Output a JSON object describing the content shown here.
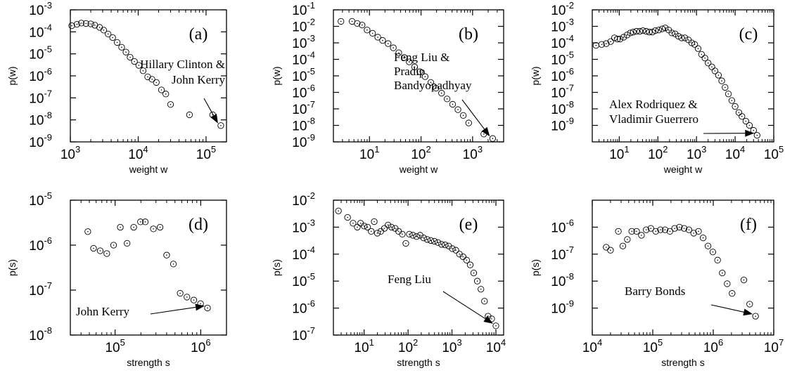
{
  "chart_data": [
    {
      "panel": "(a)",
      "type": "scatter",
      "log_x": true,
      "log_y": true,
      "xlabel": "weight w",
      "ylabel": "p(w)",
      "xlim": [
        1000,
        200000
      ],
      "ylim": [
        1e-09,
        0.001
      ],
      "x_ticks": [
        {
          "v": 1000,
          "label": "10^3"
        },
        {
          "v": 10000,
          "label": "10^4"
        },
        {
          "v": 100000,
          "label": "10^5"
        }
      ],
      "y_ticks": [
        {
          "v": 1e-09,
          "label": "10^-9"
        },
        {
          "v": 1e-08,
          "label": "10^-8"
        },
        {
          "v": 1e-07,
          "label": "10^-7"
        },
        {
          "v": 1e-06,
          "label": "10^-6"
        },
        {
          "v": 1e-05,
          "label": "10^-5"
        },
        {
          "v": 0.0001,
          "label": "10^-4"
        },
        {
          "v": 0.001,
          "label": "10^-3"
        }
      ],
      "points": [
        [
          1050,
          0.00019
        ],
        [
          1250,
          0.00022
        ],
        [
          1450,
          0.00025
        ],
        [
          1700,
          0.00024
        ],
        [
          2000,
          0.00023
        ],
        [
          2300,
          0.0002
        ],
        [
          2700,
          0.00016
        ],
        [
          3100,
          0.00012
        ],
        [
          3600,
          8e-05
        ],
        [
          4200,
          5.5e-05
        ],
        [
          4900,
          3.3e-05
        ],
        [
          5700,
          2e-05
        ],
        [
          6600,
          1.2e-05
        ],
        [
          7600,
          7e-06
        ],
        [
          8800,
          4.5e-06
        ],
        [
          10200,
          3e-06
        ],
        [
          11800,
          1.7e-06
        ],
        [
          13800,
          9e-07
        ],
        [
          16000,
          7e-07
        ],
        [
          18500,
          5e-07
        ],
        [
          22000,
          2.3e-07
        ],
        [
          25500,
          1.5e-07
        ],
        [
          30000,
          5e-08
        ],
        [
          57000,
          1.7e-08
        ],
        [
          125000,
          1.7e-08
        ],
        [
          165000,
          5.5e-09
        ]
      ],
      "annotation": {
        "lines": [
          "Hillary Clinton &",
          "John Kerry"
        ]
      }
    },
    {
      "panel": "(b)",
      "type": "scatter",
      "log_x": true,
      "log_y": true,
      "xlabel": "weight w",
      "ylabel": "p(w)",
      "xlim": [
        2,
        4000
      ],
      "ylim": [
        1e-09,
        0.1
      ],
      "x_ticks": [
        {
          "v": 10,
          "label": "10^1"
        },
        {
          "v": 100,
          "label": "10^2"
        },
        {
          "v": 1000,
          "label": "10^3"
        }
      ],
      "y_ticks": [
        {
          "v": 1e-09,
          "label": "10^-9"
        },
        {
          "v": 1e-08,
          "label": "10^-8"
        },
        {
          "v": 1e-07,
          "label": "10^-7"
        },
        {
          "v": 1e-06,
          "label": "10^-6"
        },
        {
          "v": 1e-05,
          "label": "10^-5"
        },
        {
          "v": 0.0001,
          "label": "10^-4"
        },
        {
          "v": 0.001,
          "label": "10^-3"
        },
        {
          "v": 0.01,
          "label": "10^-2"
        },
        {
          "v": 0.1,
          "label": "10^-1"
        }
      ],
      "points": [
        [
          2.8,
          0.02
        ],
        [
          4.6,
          0.02
        ],
        [
          5.8,
          0.015
        ],
        [
          7.2,
          0.012
        ],
        [
          9,
          0.006
        ],
        [
          11.5,
          0.0038
        ],
        [
          14.5,
          0.0022
        ],
        [
          18,
          0.0014
        ],
        [
          23,
          0.0009
        ],
        [
          29,
          0.0005
        ],
        [
          37,
          0.00025
        ],
        [
          47,
          0.00013
        ],
        [
          59,
          7e-05
        ],
        [
          75,
          3.5e-05
        ],
        [
          95,
          1.8e-05
        ],
        [
          120,
          9e-06
        ],
        [
          155,
          4e-06
        ],
        [
          195,
          1.8e-06
        ],
        [
          250,
          9e-07
        ],
        [
          320,
          4e-07
        ],
        [
          410,
          1.9e-07
        ],
        [
          520,
          9e-08
        ],
        [
          660,
          4e-08
        ],
        [
          840,
          1.4e-08
        ],
        [
          1650,
          3e-09
        ],
        [
          2450,
          1.6e-09
        ]
      ],
      "annotation": {
        "lines": [
          "Feng Liu &",
          "Pradip",
          "Bandyopadhyay"
        ]
      }
    },
    {
      "panel": "(c)",
      "type": "scatter",
      "log_x": true,
      "log_y": true,
      "xlabel": "weight w",
      "ylabel": "p(w)",
      "xlim": [
        2,
        100000
      ],
      "ylim": [
        1e-10,
        0.01
      ],
      "x_ticks": [
        {
          "v": 10,
          "label": "10^1"
        },
        {
          "v": 100,
          "label": "10^2"
        },
        {
          "v": 1000,
          "label": "10^3"
        },
        {
          "v": 10000,
          "label": "10^4"
        },
        {
          "v": 100000,
          "label": "10^5"
        }
      ],
      "y_ticks": [
        {
          "v": 1e-09,
          "label": "10^-9"
        },
        {
          "v": 1e-08,
          "label": "10^-8"
        },
        {
          "v": 1e-07,
          "label": "10^-7"
        },
        {
          "v": 1e-06,
          "label": "10^-6"
        },
        {
          "v": 1e-05,
          "label": "10^-5"
        },
        {
          "v": 0.0001,
          "label": "10^-4"
        },
        {
          "v": 0.001,
          "label": "10^-3"
        },
        {
          "v": 0.01,
          "label": "10^-2"
        }
      ],
      "points": [
        [
          2.5,
          7e-05
        ],
        [
          3.5,
          8e-05
        ],
        [
          4.6,
          9e-05
        ],
        [
          6,
          0.00012
        ],
        [
          7.5,
          0.0002
        ],
        [
          9,
          0.00017
        ],
        [
          10.5,
          0.00017
        ],
        [
          13,
          0.00022
        ],
        [
          16,
          0.0003
        ],
        [
          19.5,
          0.0004
        ],
        [
          23,
          0.00045
        ],
        [
          28,
          0.0005
        ],
        [
          34,
          0.0005
        ],
        [
          41,
          0.00055
        ],
        [
          50,
          0.0005
        ],
        [
          60,
          0.00045
        ],
        [
          72,
          0.00045
        ],
        [
          86,
          0.00055
        ],
        [
          105,
          0.0006
        ],
        [
          130,
          0.0007
        ],
        [
          155,
          0.0008
        ],
        [
          190,
          0.0006
        ],
        [
          230,
          0.0004
        ],
        [
          280,
          0.00035
        ],
        [
          340,
          0.00025
        ],
        [
          410,
          0.0002
        ],
        [
          500,
          0.0002
        ],
        [
          620,
          0.00015
        ],
        [
          750,
          0.0001
        ],
        [
          900,
          8e-05
        ],
        [
          1100,
          4.5e-05
        ],
        [
          1350,
          2e-05
        ],
        [
          1650,
          1.2e-05
        ],
        [
          2000,
          6e-06
        ],
        [
          2500,
          3.5e-06
        ],
        [
          3000,
          2e-06
        ],
        [
          3700,
          1.1e-06
        ],
        [
          4500,
          5e-07
        ],
        [
          5500,
          2e-07
        ],
        [
          6700,
          8e-08
        ],
        [
          8200,
          3.2e-08
        ],
        [
          10000,
          1.4e-08
        ],
        [
          12500,
          6e-09
        ],
        [
          15000,
          3.5e-09
        ],
        [
          19000,
          1.8e-09
        ],
        [
          23500,
          1e-09
        ],
        [
          30000,
          5e-10
        ],
        [
          37000,
          2.5e-10
        ]
      ],
      "annotation": {
        "lines": [
          "Alex Rodriquez &",
          "Vladimir Guerrero"
        ]
      }
    },
    {
      "panel": "(d)",
      "type": "scatter",
      "log_x": true,
      "log_y": true,
      "xlabel": "strength s",
      "ylabel": "p(s)",
      "xlim": [
        30000,
        2000000
      ],
      "ylim": [
        1e-08,
        1e-05
      ],
      "x_ticks": [
        {
          "v": 100000,
          "label": "10^5"
        },
        {
          "v": 1000000,
          "label": "10^6"
        }
      ],
      "y_ticks": [
        {
          "v": 1e-08,
          "label": "10^-8"
        },
        {
          "v": 1e-07,
          "label": "10^-7"
        },
        {
          "v": 1e-06,
          "label": "10^-6"
        },
        {
          "v": 1e-05,
          "label": "10^-5"
        }
      ],
      "points": [
        [
          48000,
          2e-06
        ],
        [
          56000,
          8.5e-07
        ],
        [
          67000,
          7.5e-07
        ],
        [
          80000,
          6.5e-07
        ],
        [
          96000,
          1e-06
        ],
        [
          115000,
          2.5e-06
        ],
        [
          138000,
          1.1e-06
        ],
        [
          165000,
          2.5e-06
        ],
        [
          198000,
          3.3e-06
        ],
        [
          225000,
          3.3e-06
        ],
        [
          280000,
          2.3e-06
        ],
        [
          335000,
          2.5e-06
        ],
        [
          400000,
          6e-07
        ],
        [
          480000,
          3.8e-07
        ],
        [
          575000,
          8.5e-08
        ],
        [
          690000,
          7e-08
        ],
        [
          830000,
          6e-08
        ],
        [
          995000,
          5e-08
        ],
        [
          1200000,
          4e-08
        ]
      ],
      "annotation": {
        "lines": [
          "John Kerry"
        ]
      }
    },
    {
      "panel": "(e)",
      "type": "scatter",
      "log_x": true,
      "log_y": true,
      "xlabel": "strength s",
      "ylabel": "p(s)",
      "xlim": [
        2,
        15000
      ],
      "ylim": [
        1e-07,
        0.01
      ],
      "x_ticks": [
        {
          "v": 10,
          "label": "10^1"
        },
        {
          "v": 100,
          "label": "10^2"
        },
        {
          "v": 1000,
          "label": "10^3"
        },
        {
          "v": 10000,
          "label": "10^4"
        }
      ],
      "y_ticks": [
        {
          "v": 1e-07,
          "label": "10^-7"
        },
        {
          "v": 1e-06,
          "label": "10^-6"
        },
        {
          "v": 1e-05,
          "label": "10^-5"
        },
        {
          "v": 0.0001,
          "label": "10^-4"
        },
        {
          "v": 0.001,
          "label": "10^-3"
        },
        {
          "v": 0.01,
          "label": "10^-2"
        }
      ],
      "points": [
        [
          2.6,
          0.004
        ],
        [
          4.2,
          0.0023
        ],
        [
          5.6,
          0.0014
        ],
        [
          7,
          0.001
        ],
        [
          8.3,
          0.0014
        ],
        [
          10,
          0.0011
        ],
        [
          12,
          0.001
        ],
        [
          14.5,
          0.0007
        ],
        [
          17,
          0.0016
        ],
        [
          20,
          0.0006
        ],
        [
          24,
          0.0007
        ],
        [
          29,
          0.0009
        ],
        [
          35,
          0.0012
        ],
        [
          42,
          0.001
        ],
        [
          51,
          0.0009
        ],
        [
          61,
          0.0007
        ],
        [
          74,
          0.00055
        ],
        [
          89,
          0.00025
        ],
        [
          107,
          0.00055
        ],
        [
          129,
          0.0005
        ],
        [
          156,
          0.00045
        ],
        [
          188,
          0.0005
        ],
        [
          226,
          0.0004
        ],
        [
          273,
          0.00035
        ],
        [
          330,
          0.00032
        ],
        [
          398,
          0.0003
        ],
        [
          480,
          0.00027
        ],
        [
          579,
          0.00023
        ],
        [
          698,
          0.00022
        ],
        [
          842,
          0.0002
        ],
        [
          1015,
          0.00016
        ],
        [
          1225,
          0.00014
        ],
        [
          1480,
          0.0001
        ],
        [
          1785,
          8e-05
        ],
        [
          2150,
          6e-05
        ],
        [
          2600,
          4e-05
        ],
        [
          3130,
          2e-05
        ],
        [
          3780,
          1e-05
        ],
        [
          4560,
          5e-06
        ],
        [
          5500,
          1.8e-06
        ],
        [
          6630,
          5e-07
        ],
        [
          8000,
          4e-07
        ],
        [
          10000,
          2.2e-07
        ]
      ],
      "annotation": {
        "lines": [
          "Feng Liu"
        ]
      }
    },
    {
      "panel": "(f)",
      "type": "scatter",
      "log_x": true,
      "log_y": true,
      "xlabel": "strength s",
      "ylabel": "p(s)",
      "xlim": [
        10000,
        10000000
      ],
      "ylim": [
        1e-10,
        1e-05
      ],
      "x_ticks": [
        {
          "v": 10000,
          "label": "10^4"
        },
        {
          "v": 100000,
          "label": "10^5"
        },
        {
          "v": 1000000,
          "label": "10^6"
        },
        {
          "v": 10000000,
          "label": "10^7"
        }
      ],
      "y_ticks": [
        {
          "v": 1e-09,
          "label": "10^-9"
        },
        {
          "v": 1e-08,
          "label": "10^-8"
        },
        {
          "v": 1e-07,
          "label": "10^-7"
        },
        {
          "v": 1e-06,
          "label": "10^-6"
        }
      ],
      "points": [
        [
          17000,
          1.8e-07
        ],
        [
          20000,
          1.4e-07
        ],
        [
          27000,
          7e-07
        ],
        [
          32000,
          2e-07
        ],
        [
          38000,
          3.5e-07
        ],
        [
          45000,
          7e-07
        ],
        [
          54000,
          7e-07
        ],
        [
          65000,
          5e-07
        ],
        [
          78000,
          8e-07
        ],
        [
          93000,
          9e-07
        ],
        [
          112000,
          7e-07
        ],
        [
          134000,
          8e-07
        ],
        [
          160000,
          8e-07
        ],
        [
          192000,
          7e-07
        ],
        [
          230000,
          9e-07
        ],
        [
          276000,
          1e-06
        ],
        [
          330000,
          9e-07
        ],
        [
          396000,
          8e-07
        ],
        [
          475000,
          6e-07
        ],
        [
          570000,
          7e-07
        ],
        [
          680000,
          4e-07
        ],
        [
          820000,
          2e-07
        ],
        [
          985000,
          1.2e-07
        ],
        [
          1180000,
          6e-08
        ],
        [
          1410000,
          2e-08
        ],
        [
          1700000,
          8e-09
        ],
        [
          2050000,
          3.5e-09
        ],
        [
          3200000,
          1.1e-08
        ],
        [
          4000000,
          1.4e-09
        ],
        [
          5000000,
          5e-10
        ]
      ],
      "annotation": {
        "lines": [
          "Barry Bonds"
        ]
      }
    }
  ]
}
